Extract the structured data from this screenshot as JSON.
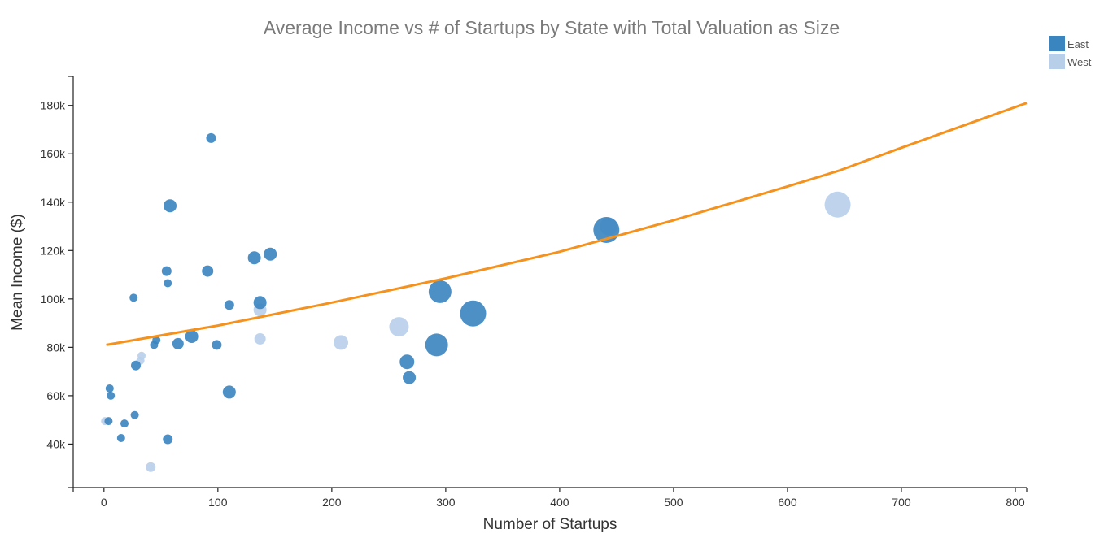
{
  "chart_data": {
    "type": "scatter",
    "title": "Average Income  vs # of Startups by State with Total Valuation as Size",
    "xlabel": "Number of Startups",
    "ylabel": "Mean Income ($)",
    "xlim": [
      -27,
      810
    ],
    "ylim": [
      22000,
      192000
    ],
    "xticks": [
      0,
      100,
      200,
      300,
      400,
      500,
      600,
      700,
      800
    ],
    "yticks": [
      40000,
      60000,
      80000,
      100000,
      120000,
      140000,
      160000,
      180000
    ],
    "ytick_labels": [
      "40k",
      "60k",
      "80k",
      "100k",
      "120k",
      "140k",
      "160k",
      "180k"
    ],
    "legend_position": "top-right",
    "size_encoding": "Total Valuation",
    "colors": {
      "East": "#3a84c0",
      "West": "#b8cfea",
      "trend": "#f5921e",
      "axis": "#222222"
    },
    "series": [
      {
        "name": "East",
        "points": [
          {
            "x": 94,
            "y": 166500,
            "size": 6
          },
          {
            "x": 58,
            "y": 138500,
            "size": 8
          },
          {
            "x": 55,
            "y": 111500,
            "size": 6
          },
          {
            "x": 91,
            "y": 111500,
            "size": 7
          },
          {
            "x": 132,
            "y": 117000,
            "size": 8
          },
          {
            "x": 146,
            "y": 118500,
            "size": 8
          },
          {
            "x": 56,
            "y": 106500,
            "size": 5
          },
          {
            "x": 26,
            "y": 100500,
            "size": 5
          },
          {
            "x": 110,
            "y": 97500,
            "size": 6
          },
          {
            "x": 137,
            "y": 98500,
            "size": 8
          },
          {
            "x": 77,
            "y": 84500,
            "size": 8
          },
          {
            "x": 65,
            "y": 81500,
            "size": 7
          },
          {
            "x": 99,
            "y": 81000,
            "size": 6
          },
          {
            "x": 44,
            "y": 81000,
            "size": 5
          },
          {
            "x": 46,
            "y": 83000,
            "size": 5
          },
          {
            "x": 28,
            "y": 72500,
            "size": 6
          },
          {
            "x": 110,
            "y": 61500,
            "size": 8
          },
          {
            "x": 5,
            "y": 63000,
            "size": 5
          },
          {
            "x": 6,
            "y": 60000,
            "size": 5
          },
          {
            "x": 27,
            "y": 52000,
            "size": 5
          },
          {
            "x": 18,
            "y": 48500,
            "size": 5
          },
          {
            "x": 4,
            "y": 49500,
            "size": 5
          },
          {
            "x": 15,
            "y": 42500,
            "size": 5
          },
          {
            "x": 56,
            "y": 42000,
            "size": 6
          },
          {
            "x": 295,
            "y": 103000,
            "size": 14
          },
          {
            "x": 324,
            "y": 94000,
            "size": 16
          },
          {
            "x": 292,
            "y": 81000,
            "size": 14
          },
          {
            "x": 266,
            "y": 74000,
            "size": 9
          },
          {
            "x": 268,
            "y": 67500,
            "size": 8
          },
          {
            "x": 441,
            "y": 128500,
            "size": 16
          }
        ]
      },
      {
        "name": "West",
        "points": [
          {
            "x": 137,
            "y": 95500,
            "size": 8
          },
          {
            "x": 137,
            "y": 83500,
            "size": 7
          },
          {
            "x": 208,
            "y": 82000,
            "size": 9
          },
          {
            "x": 259,
            "y": 88500,
            "size": 12
          },
          {
            "x": 33,
            "y": 76500,
            "size": 5
          },
          {
            "x": 32,
            "y": 74500,
            "size": 5
          },
          {
            "x": 41,
            "y": 30500,
            "size": 6
          },
          {
            "x": 1,
            "y": 49500,
            "size": 5
          },
          {
            "x": 443,
            "y": 130000,
            "size": 11
          },
          {
            "x": 644,
            "y": 139000,
            "size": 16
          }
        ]
      }
    ],
    "trend_line": [
      {
        "x": 2,
        "y": 81000
      },
      {
        "x": 100,
        "y": 89000
      },
      {
        "x": 200,
        "y": 98500
      },
      {
        "x": 300,
        "y": 108500
      },
      {
        "x": 400,
        "y": 119500
      },
      {
        "x": 500,
        "y": 132500
      },
      {
        "x": 600,
        "y": 146500
      },
      {
        "x": 645,
        "y": 153000
      },
      {
        "x": 700,
        "y": 162500
      },
      {
        "x": 810,
        "y": 181000
      }
    ]
  }
}
